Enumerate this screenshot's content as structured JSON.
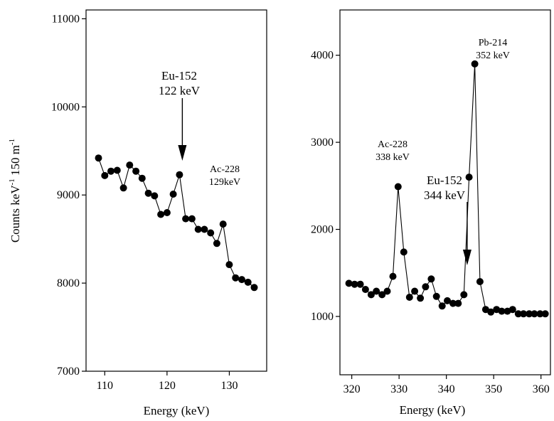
{
  "chart_data": [
    {
      "type": "line",
      "ylabel": "Counts keV",
      "ylabel_sup1": "-1",
      "ylabel_mid": " 150 m",
      "ylabel_sup2": "-1",
      "xlabel": "Energy (keV)",
      "xlim": [
        107,
        136
      ],
      "ylim": [
        7000,
        11100
      ],
      "xticks": [
        110,
        120,
        130
      ],
      "yticks": [
        7000,
        8000,
        9000,
        10000,
        11000
      ],
      "grid": false,
      "series": [
        {
          "x": [
            109,
            110,
            111,
            112,
            113,
            114,
            115,
            116,
            117,
            118,
            119,
            120,
            121,
            122,
            123,
            124,
            125,
            126,
            127,
            128,
            129,
            130,
            131,
            132,
            133,
            134
          ],
          "y": [
            9420,
            9220,
            9270,
            9280,
            9080,
            9340,
            9270,
            9190,
            9020,
            8990,
            8780,
            8800,
            9010,
            9230,
            8730,
            8730,
            8610,
            8610,
            8570,
            8450,
            8670,
            8210,
            8060,
            8040,
            8010,
            7950
          ]
        }
      ],
      "annotations": [
        {
          "lines": [
            "Eu-152",
            "122 keV"
          ],
          "x": 122,
          "y": 9230,
          "arrow": true
        },
        {
          "lines": [
            "Ac-228",
            "129keV"
          ],
          "x": 129,
          "y": 9250,
          "arrow": false
        }
      ]
    },
    {
      "type": "line",
      "xlabel": "Energy (keV)",
      "xlim": [
        317.5,
        362
      ],
      "ylim": [
        330,
        4520
      ],
      "xticks": [
        320,
        330,
        340,
        350,
        360
      ],
      "yticks": [
        1000,
        2000,
        3000,
        4000
      ],
      "grid": false,
      "series": [
        {
          "x": [
            319.4,
            320.6,
            321.8,
            322.9,
            324.1,
            325.2,
            326.4,
            327.5,
            328.7,
            329.8,
            331.0,
            332.2,
            333.3,
            334.5,
            335.6,
            336.8,
            337.9,
            339.1,
            340.2,
            341.4,
            342.5,
            343.7,
            344.8,
            346.0,
            347.1,
            348.3,
            349.4,
            350.6,
            351.7,
            352.9,
            354.0,
            355.2,
            356.3,
            357.5,
            358.6,
            359.8,
            360.9
          ],
          "y": [
            1380,
            1370,
            1370,
            1310,
            1250,
            1290,
            1250,
            1290,
            1460,
            2490,
            1740,
            1220,
            1290,
            1210,
            1340,
            1430,
            1230,
            1120,
            1180,
            1150,
            1150,
            1250,
            2600,
            3900,
            1400,
            1080,
            1050,
            1080,
            1060,
            1060,
            1080,
            1030,
            1030,
            1030,
            1030,
            1030,
            1030
          ]
        }
      ],
      "annotations": [
        {
          "lines": [
            "Pb-214",
            "352 keV"
          ],
          "x": 352.3,
          "y": 3900,
          "arrow": false
        },
        {
          "lines": [
            "Ac-228",
            "338 keV"
          ],
          "x": 338.5,
          "y": 2490,
          "arrow": false
        },
        {
          "lines": [
            "Eu-152",
            "344 keV"
          ],
          "x": 344.4,
          "y": 1430,
          "arrow": true
        }
      ]
    }
  ]
}
